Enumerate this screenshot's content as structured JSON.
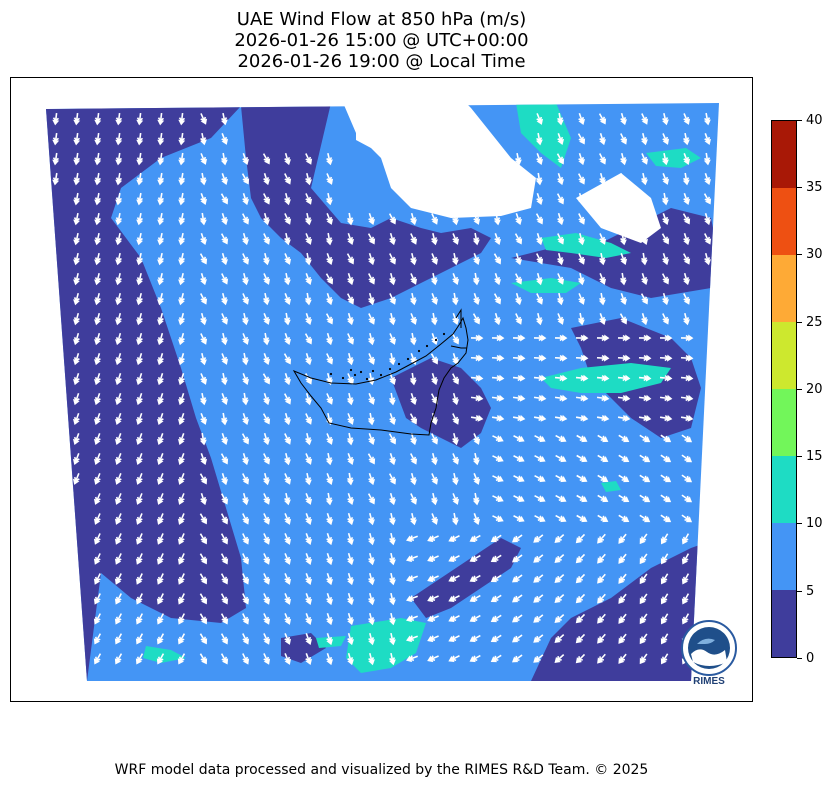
{
  "title": {
    "line1": "UAE Wind Flow at 850 hPa (m/s)",
    "line2": "2026-01-26 15:00 @ UTC+00:00",
    "line3": "2026-01-26 19:00 @ Local Time"
  },
  "colorbar": {
    "ticks": [
      "0",
      "5",
      "10",
      "15",
      "20",
      "25",
      "30",
      "35",
      "40"
    ],
    "colors": [
      "#3f3d9c",
      "#4495f5",
      "#1edcc4",
      "#72f65a",
      "#cde82e",
      "#feaa36",
      "#ee5012",
      "#a81806"
    ]
  },
  "map": {
    "background_speed_color": "#4495f5",
    "calm_color": "#3f3d9c",
    "strong_color": "#1edcc4",
    "arrow_color": "#ffffff",
    "border_color": "#000000"
  },
  "logo": {
    "text": "RIMES",
    "color": "#1f3f74"
  },
  "footer": {
    "credit": "WRF model data processed and visualized by the RIMES R&D Team. © 2025"
  }
}
